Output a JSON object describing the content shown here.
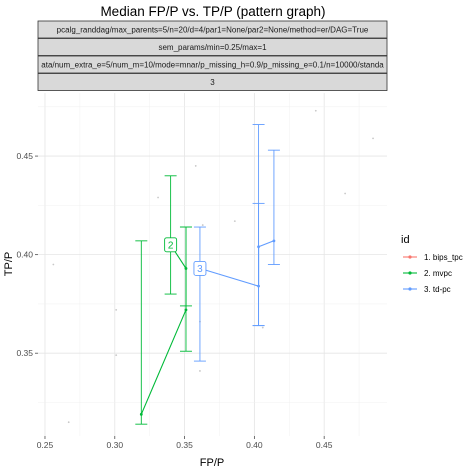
{
  "chart_data": {
    "type": "line",
    "title": "Median FP/P vs. TP/P (pattern graph)",
    "xlabel": "FP/P",
    "ylabel": "TP/P",
    "xlim": [
      0.245,
      0.495
    ],
    "ylim": [
      0.308,
      0.482
    ],
    "x_ticks": [
      0.25,
      0.3,
      0.35,
      0.4,
      0.45
    ],
    "x_tick_labels": [
      "0.25",
      "0.30",
      "0.35",
      "0.40",
      "0.45"
    ],
    "y_ticks": [
      0.35,
      0.4,
      0.45
    ],
    "y_tick_labels": [
      "0.35",
      "0.40",
      "0.45"
    ],
    "grid": true,
    "facet_strips": [
      "pcalg_randdag/max_parents=5/n=20/d=4/par1=None/par2=None/method=er/DAG=True",
      "sem_params/min=0.25/max=1",
      "ata/num_extra_e=5/num_m=10/mode=mnar/p_missing_h=0.9/p_missing_e=0.1/n=10000/standa",
      "3"
    ],
    "legend": {
      "title": "id",
      "position": "right",
      "entries": [
        {
          "label": "1. bips_tpc",
          "color": "#F8766D"
        },
        {
          "label": "2. mvpc",
          "color": "#00BA38"
        },
        {
          "label": "3. td-pc",
          "color": "#619CFF"
        }
      ]
    },
    "series": [
      {
        "name": "2. mvpc",
        "color": "#00BA38",
        "points": [
          {
            "x": 0.319,
            "y": 0.319,
            "ymin": 0.314,
            "ymax": 0.407
          },
          {
            "x": 0.351,
            "y": 0.372,
            "ymin": 0.351,
            "ymax": 0.414
          },
          {
            "x": 0.351,
            "y": 0.393,
            "ymin": 0.374,
            "ymax": 0.414
          },
          {
            "x": 0.34,
            "y": 0.405,
            "ymin": 0.38,
            "ymax": 0.44
          }
        ],
        "label": {
          "text": "2",
          "x": 0.34,
          "y": 0.405
        }
      },
      {
        "name": "3. td-pc",
        "color": "#619CFF",
        "points": [
          {
            "x": 0.361,
            "y": 0.393,
            "ymin": 0.346,
            "ymax": 0.414
          },
          {
            "x": 0.403,
            "y": 0.384,
            "ymin": 0.364,
            "ymax": 0.426
          },
          {
            "x": 0.403,
            "y": 0.404,
            "ymin": 0.364,
            "ymax": 0.466
          },
          {
            "x": 0.414,
            "y": 0.407,
            "ymin": 0.395,
            "ymax": 0.453
          }
        ],
        "label": {
          "text": "3",
          "x": 0.361,
          "y": 0.393
        }
      }
    ],
    "background_points": [
      {
        "x": 0.256,
        "y": 0.395
      },
      {
        "x": 0.267,
        "y": 0.315
      },
      {
        "x": 0.301,
        "y": 0.372
      },
      {
        "x": 0.301,
        "y": 0.349
      },
      {
        "x": 0.331,
        "y": 0.429
      },
      {
        "x": 0.358,
        "y": 0.445
      },
      {
        "x": 0.361,
        "y": 0.366
      },
      {
        "x": 0.361,
        "y": 0.341
      },
      {
        "x": 0.363,
        "y": 0.415
      },
      {
        "x": 0.386,
        "y": 0.417
      },
      {
        "x": 0.406,
        "y": 0.363
      },
      {
        "x": 0.444,
        "y": 0.473
      },
      {
        "x": 0.465,
        "y": 0.431
      },
      {
        "x": 0.485,
        "y": 0.459
      }
    ]
  }
}
